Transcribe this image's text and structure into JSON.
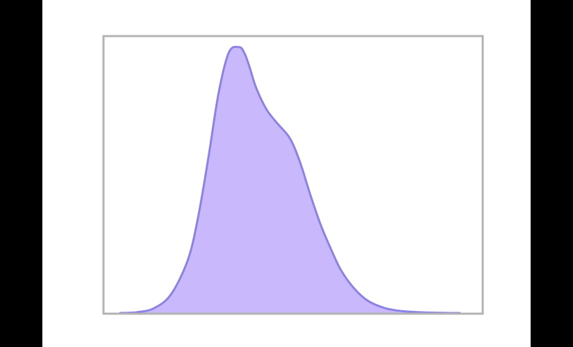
{
  "chart_data": {
    "type": "area",
    "title": "",
    "xlabel": "",
    "ylabel": "",
    "xlim": [
      0,
      1
    ],
    "ylim": [
      0,
      1
    ],
    "grid": false,
    "legend": "none",
    "series": [
      {
        "x": [
          0.0,
          0.05,
          0.1,
          0.15,
          0.2,
          0.23,
          0.26,
          0.29,
          0.32,
          0.35,
          0.365,
          0.38,
          0.4,
          0.43,
          0.46,
          0.5,
          0.53,
          0.56,
          0.59,
          0.62,
          0.65,
          0.69,
          0.73,
          0.78,
          0.83,
          0.88,
          0.93,
          0.97,
          1.0
        ],
        "y": [
          0.0,
          0.003,
          0.018,
          0.07,
          0.2,
          0.36,
          0.58,
          0.82,
          0.97,
          0.99,
          0.97,
          0.92,
          0.84,
          0.76,
          0.71,
          0.65,
          0.56,
          0.44,
          0.33,
          0.24,
          0.16,
          0.09,
          0.045,
          0.018,
          0.007,
          0.003,
          0.001,
          0.0,
          0.0
        ]
      }
    ],
    "colors": {
      "fill": "#c9b8fb",
      "stroke": "#8b82e6",
      "frame": "#b3b3b3",
      "panel": "#ffffff",
      "background": "#000000"
    }
  }
}
